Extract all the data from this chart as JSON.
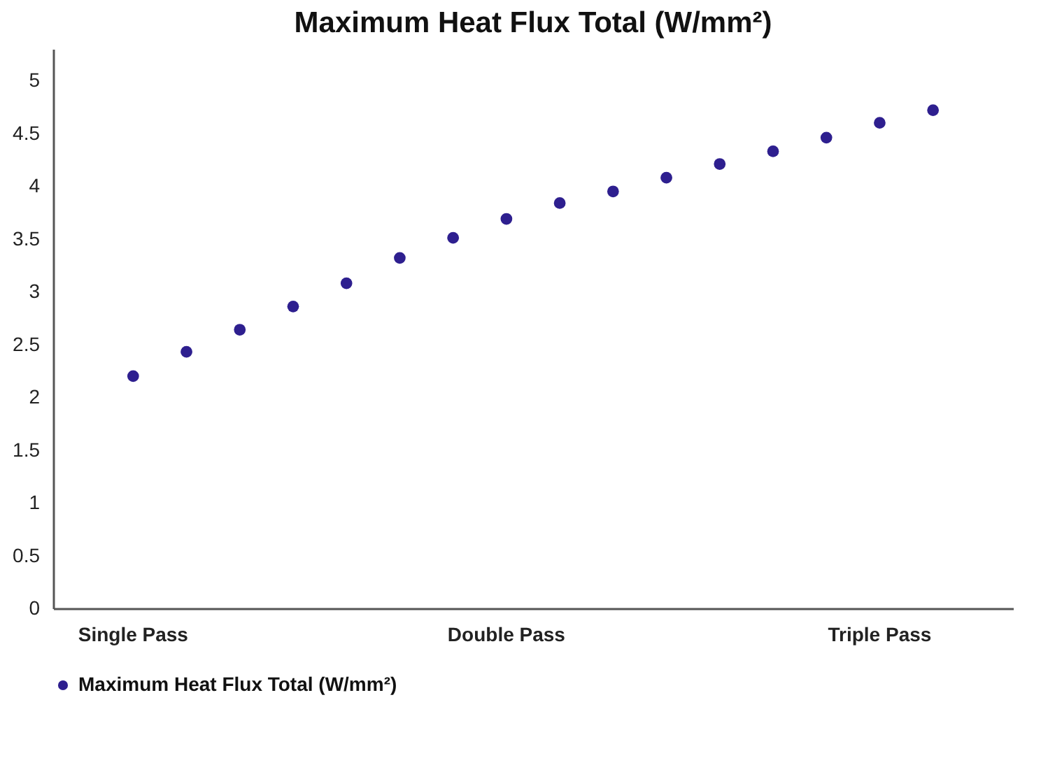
{
  "chart_data": {
    "type": "scatter",
    "title": "Maximum Heat Flux Total (W/mm²)",
    "categories": [
      "Single Pass",
      null,
      null,
      null,
      null,
      null,
      null,
      "Double Pass",
      null,
      null,
      null,
      null,
      null,
      null,
      "Triple Pass",
      null
    ],
    "series": [
      {
        "name": "Maximum Heat Flux Total (W/mm²)",
        "color": "#2e1f8f",
        "values": [
          2.2,
          2.43,
          2.64,
          2.86,
          3.08,
          3.32,
          3.51,
          3.69,
          3.84,
          3.95,
          4.08,
          4.21,
          4.33,
          4.46,
          4.6,
          4.72
        ]
      }
    ],
    "ylim": [
      0,
      5.3
    ],
    "yticks": [
      0,
      0.5,
      1,
      1.5,
      2,
      2.5,
      3,
      3.5,
      4,
      4.5,
      5
    ],
    "grid": false,
    "legend": "bottom",
    "marker": "circle"
  }
}
